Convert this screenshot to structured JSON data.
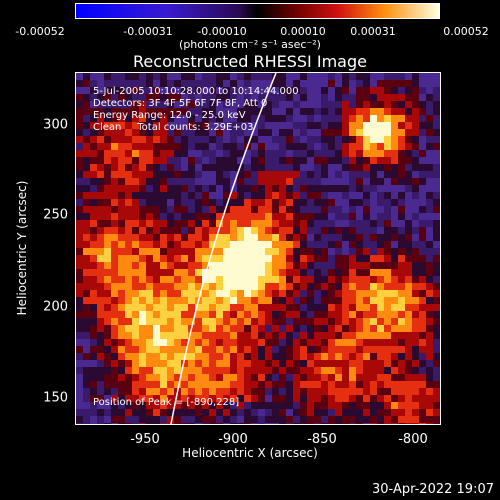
{
  "colorbar": {
    "ticks": [
      "-0.00052",
      "-0.00031",
      "-0.00010",
      "0.00010",
      "0.00031",
      "0.00052"
    ],
    "units": "(photons cm⁻² s⁻¹ asec⁻²)"
  },
  "title": "Reconstructed RHESSI Image",
  "annotation": {
    "time": "5-Jul-2005 10:10:28.000 to 10:14:44.000",
    "detectors": "Detectors: 3F 4F 5F 6F 7F 8F, Att 0",
    "energy": "Energy Range: 12.0 - 25.0 keV",
    "clean": "Clean     Total counts: 3.29E+03"
  },
  "peak_label": "Position of Peak = [-890,228]",
  "x_axis": {
    "label": "Heliocentric X (arcsec)",
    "ticks": [
      "-950",
      "-900",
      "-850",
      "-800"
    ]
  },
  "y_axis": {
    "label": "Heliocentric Y (arcsec)",
    "ticks": [
      "300",
      "250",
      "200",
      "150"
    ]
  },
  "footer": "30-Apr-2022 19:07"
}
